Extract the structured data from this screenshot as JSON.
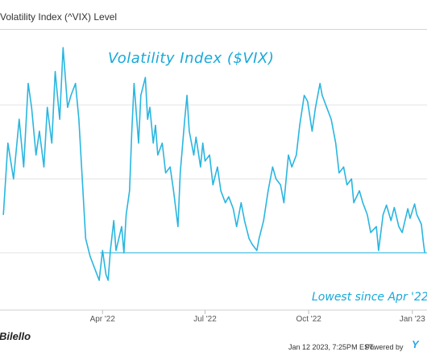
{
  "chart_data": {
    "type": "line",
    "title": "Volatility Index (^VIX) Level",
    "series": [
      {
        "name": "",
        "color": "#29b6e0",
        "points": [
          [
            "2022-01-03",
            22
          ],
          [
            "2022-01-07",
            28
          ],
          [
            "2022-01-12",
            25
          ],
          [
            "2022-01-17",
            30
          ],
          [
            "2022-01-21",
            26
          ],
          [
            "2022-01-25",
            33
          ],
          [
            "2022-01-28",
            31
          ],
          [
            "2022-02-01",
            27
          ],
          [
            "2022-02-04",
            29
          ],
          [
            "2022-02-08",
            26
          ],
          [
            "2022-02-11",
            31
          ],
          [
            "2022-02-15",
            28
          ],
          [
            "2022-02-18",
            34
          ],
          [
            "2022-02-22",
            30
          ],
          [
            "2022-02-25",
            36
          ],
          [
            "2022-03-01",
            31
          ],
          [
            "2022-03-04",
            32
          ],
          [
            "2022-03-08",
            33
          ],
          [
            "2022-03-11",
            30
          ],
          [
            "2022-03-14",
            25
          ],
          [
            "2022-03-17",
            20
          ],
          [
            "2022-03-21",
            18.5
          ],
          [
            "2022-03-25",
            17.5
          ],
          [
            "2022-03-29",
            16.5
          ],
          [
            "2022-04-01",
            19
          ],
          [
            "2022-04-04",
            17
          ],
          [
            "2022-04-06",
            16.5
          ],
          [
            "2022-04-08",
            19
          ],
          [
            "2022-04-11",
            21.5
          ],
          [
            "2022-04-13",
            19
          ],
          [
            "2022-04-18",
            21
          ],
          [
            "2022-04-20",
            18.8
          ],
          [
            "2022-04-22",
            22
          ],
          [
            "2022-04-25",
            24
          ],
          [
            "2022-04-27",
            29
          ],
          [
            "2022-04-29",
            33
          ],
          [
            "2022-05-03",
            28
          ],
          [
            "2022-05-05",
            32
          ],
          [
            "2022-05-09",
            33.5
          ],
          [
            "2022-05-11",
            30
          ],
          [
            "2022-05-13",
            31
          ],
          [
            "2022-05-16",
            28
          ],
          [
            "2022-05-18",
            29.5
          ],
          [
            "2022-05-20",
            27
          ],
          [
            "2022-05-24",
            28
          ],
          [
            "2022-05-27",
            25.5
          ],
          [
            "2022-05-31",
            26
          ],
          [
            "2022-06-03",
            24
          ],
          [
            "2022-06-07",
            21
          ],
          [
            "2022-06-09",
            25.5
          ],
          [
            "2022-06-13",
            30
          ],
          [
            "2022-06-15",
            32
          ],
          [
            "2022-06-17",
            29
          ],
          [
            "2022-06-21",
            27
          ],
          [
            "2022-06-23",
            28.5
          ],
          [
            "2022-06-27",
            26
          ],
          [
            "2022-06-29",
            28
          ],
          [
            "2022-07-01",
            26.5
          ],
          [
            "2022-07-05",
            27
          ],
          [
            "2022-07-08",
            24.5
          ],
          [
            "2022-07-12",
            26
          ],
          [
            "2022-07-15",
            24
          ],
          [
            "2022-07-19",
            23
          ],
          [
            "2022-07-22",
            23.5
          ],
          [
            "2022-07-26",
            22.5
          ],
          [
            "2022-07-29",
            21
          ],
          [
            "2022-08-02",
            23
          ],
          [
            "2022-08-05",
            21.5
          ],
          [
            "2022-08-09",
            20
          ],
          [
            "2022-08-12",
            19.5
          ],
          [
            "2022-08-16",
            19
          ],
          [
            "2022-08-18",
            20
          ],
          [
            "2022-08-22",
            21.5
          ],
          [
            "2022-08-26",
            24
          ],
          [
            "2022-08-30",
            26
          ],
          [
            "2022-09-02",
            25
          ],
          [
            "2022-09-06",
            24.5
          ],
          [
            "2022-09-09",
            23
          ],
          [
            "2022-09-13",
            27
          ],
          [
            "2022-09-16",
            26
          ],
          [
            "2022-09-20",
            27
          ],
          [
            "2022-09-23",
            29.5
          ],
          [
            "2022-09-27",
            32
          ],
          [
            "2022-09-30",
            31.5
          ],
          [
            "2022-10-04",
            29
          ],
          [
            "2022-10-07",
            31
          ],
          [
            "2022-10-11",
            33
          ],
          [
            "2022-10-13",
            32
          ],
          [
            "2022-10-17",
            31
          ],
          [
            "2022-10-21",
            30
          ],
          [
            "2022-10-25",
            28
          ],
          [
            "2022-10-28",
            25.5
          ],
          [
            "2022-11-01",
            26
          ],
          [
            "2022-11-04",
            24.5
          ],
          [
            "2022-11-08",
            25
          ],
          [
            "2022-11-10",
            23
          ],
          [
            "2022-11-15",
            24
          ],
          [
            "2022-11-18",
            23
          ],
          [
            "2022-11-22",
            22
          ],
          [
            "2022-11-25",
            20.5
          ],
          [
            "2022-11-30",
            21
          ],
          [
            "2022-12-02",
            19
          ],
          [
            "2022-12-06",
            22
          ],
          [
            "2022-12-09",
            22.8
          ],
          [
            "2022-12-13",
            21.5
          ],
          [
            "2022-12-16",
            22.6
          ],
          [
            "2022-12-20",
            21
          ],
          [
            "2022-12-23",
            20.5
          ],
          [
            "2022-12-28",
            22.5
          ],
          [
            "2022-12-30",
            21.7
          ],
          [
            "2023-01-03",
            22.9
          ],
          [
            "2023-01-05",
            22
          ],
          [
            "2023-01-09",
            21.2
          ],
          [
            "2023-01-11",
            19.5
          ],
          [
            "2023-01-12",
            18.8
          ]
        ]
      }
    ],
    "x_ticks": [
      {
        "date": "2022-04-01",
        "label": "Apr '22"
      },
      {
        "date": "2022-07-01",
        "label": "Jul '22"
      },
      {
        "date": "2022-10-01",
        "label": "Oct '22"
      },
      {
        "date": "2023-01-01",
        "label": "Jan '23"
      }
    ],
    "x_range": [
      "2021-12-31",
      "2023-01-14"
    ],
    "y_range": [
      14.0,
      37.5
    ],
    "reference_line": {
      "value": 18.8,
      "color": "#29b6e0"
    },
    "gridlines": [
      18.8,
      25,
      31.2
    ],
    "grid": true,
    "legend": "none",
    "annotations": {
      "title_text": "Volatility Index ($VIX)",
      "low_text": "Lowest since Apr '22"
    }
  },
  "footer": {
    "credit": "Bilello",
    "timestamp": "Jan 12 2023, 7:25PM EST.",
    "powered_by": "Powered by",
    "brand": "Y"
  }
}
